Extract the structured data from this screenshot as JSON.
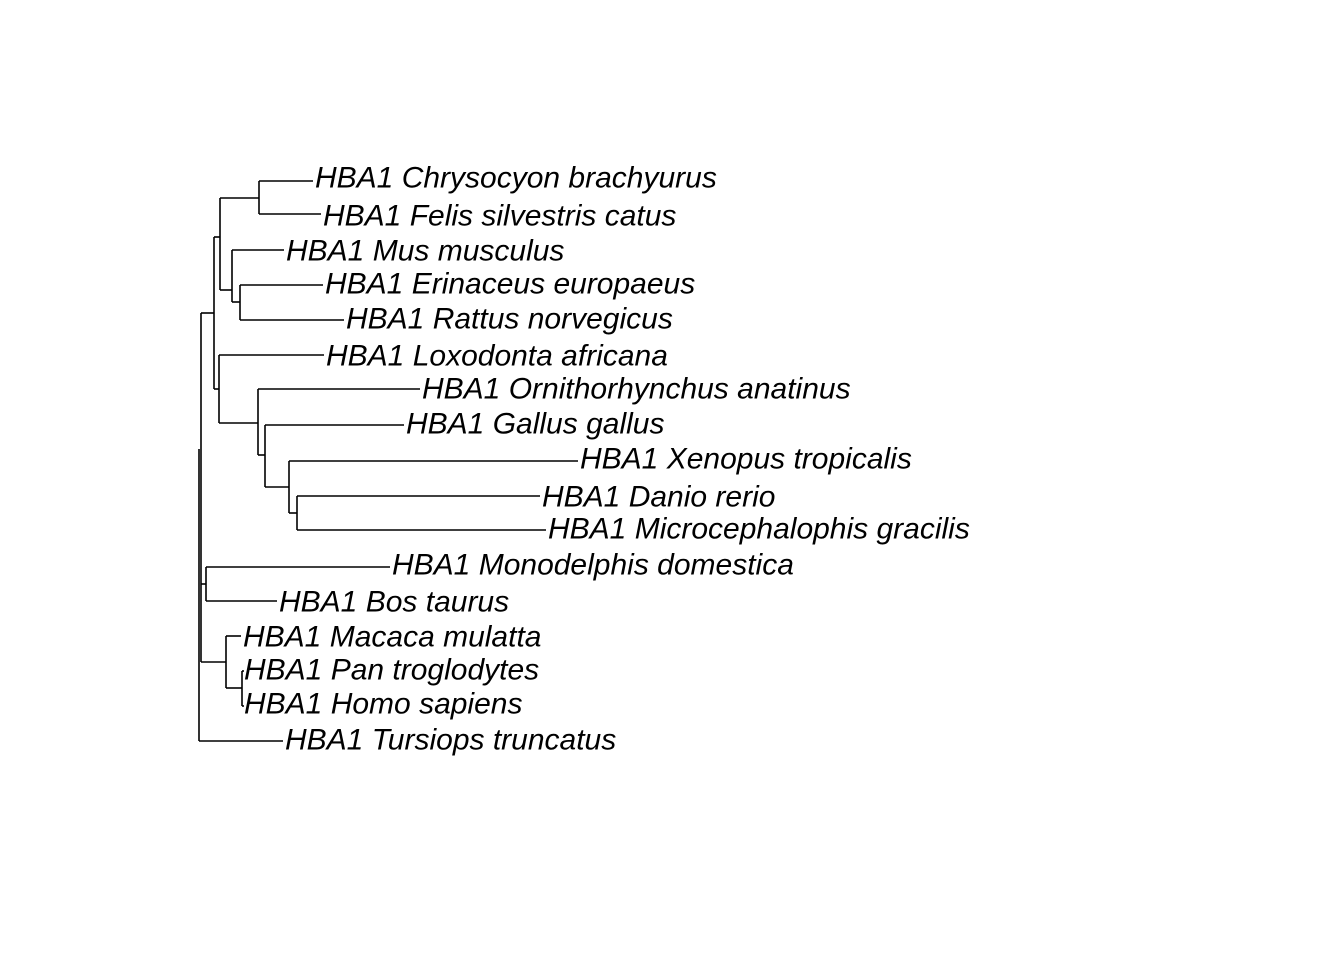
{
  "tree": {
    "line_color": "#000000",
    "text_color": "#000000",
    "background": "#ffffff",
    "leaves": [
      {
        "id": "chrysocyon",
        "label": "HBA1 Chrysocyon brachyurus"
      },
      {
        "id": "felis",
        "label": "HBA1 Felis silvestris catus"
      },
      {
        "id": "mus",
        "label": "HBA1 Mus musculus"
      },
      {
        "id": "erinaceus",
        "label": "HBA1 Erinaceus europaeus"
      },
      {
        "id": "rattus",
        "label": "HBA1 Rattus norvegicus"
      },
      {
        "id": "loxodonta",
        "label": "HBA1 Loxodonta africana"
      },
      {
        "id": "ornithorhynchus",
        "label": "HBA1 Ornithorhynchus anatinus"
      },
      {
        "id": "gallus",
        "label": "HBA1 Gallus gallus"
      },
      {
        "id": "xenopus",
        "label": "HBA1 Xenopus tropicalis"
      },
      {
        "id": "danio",
        "label": "HBA1 Danio rerio"
      },
      {
        "id": "microcephalophis",
        "label": "HBA1 Microcephalophis gracilis"
      },
      {
        "id": "monodelphis",
        "label": "HBA1 Monodelphis domestica"
      },
      {
        "id": "bos",
        "label": "HBA1 Bos taurus"
      },
      {
        "id": "macaca",
        "label": "HBA1 Macaca mulatta"
      },
      {
        "id": "pan",
        "label": "HBA1 Pan troglodytes"
      },
      {
        "id": "homo",
        "label": "HBA1 Homo sapiens"
      },
      {
        "id": "tursiops",
        "label": "HBA1 Tursiops truncatus"
      }
    ]
  }
}
